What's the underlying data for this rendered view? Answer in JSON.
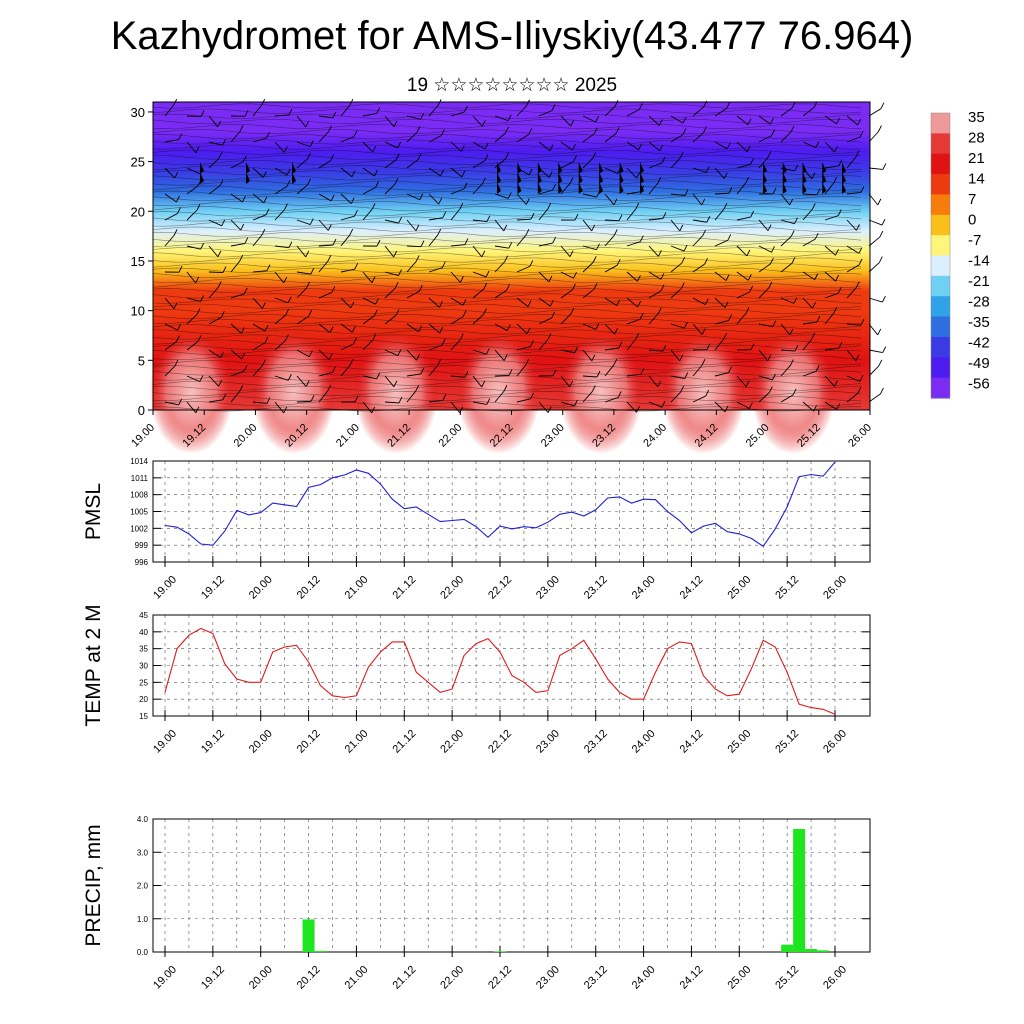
{
  "header": {
    "title": "Kazhydromet for AMS-Iliyskiy(43.477 76.964)",
    "subtitle": "19 ☆☆☆☆☆☆☆☆ 2025"
  },
  "chart_data": [
    {
      "type": "heatmap",
      "title": "",
      "xlabel": "",
      "ylabel": "",
      "x_tick_labels": [
        "19.00",
        "19.12",
        "20.00",
        "20.12",
        "21.00",
        "21.12",
        "22.00",
        "22.12",
        "23.00",
        "23.12",
        "24.00",
        "24.12",
        "25.00",
        "25.12",
        "26.00"
      ],
      "y_tick_labels": [
        "0",
        "5",
        "10",
        "15",
        "20",
        "25",
        "30"
      ],
      "ylim": [
        0,
        31
      ],
      "colorbar_labels": [
        "35",
        "28",
        "21",
        "14",
        "7",
        "0",
        "-7",
        "-14",
        "-21",
        "-28",
        "-35",
        "-42",
        "-49",
        "-56"
      ],
      "colorbar_colors": [
        "#ef9a9a",
        "#e53935",
        "#e01212",
        "#ee3a10",
        "#f67d0c",
        "#fbbf1c",
        "#fff57a",
        "#dcefff",
        "#6fd0f4",
        "#2fa2e8",
        "#2f6ee0",
        "#3b3be5",
        "#4d1cf0",
        "#7a2cf4"
      ],
      "temperature_profile": [
        {
          "height": 0,
          "value": 30
        },
        {
          "height": 5,
          "value": 22
        },
        {
          "height": 10,
          "value": 17
        },
        {
          "height": 12,
          "value": 13
        },
        {
          "height": 14,
          "value": 3
        },
        {
          "height": 16,
          "value": -6
        },
        {
          "height": 18,
          "value": -14
        },
        {
          "height": 20,
          "value": -24
        },
        {
          "height": 22,
          "value": -33
        },
        {
          "height": 24,
          "value": -42
        },
        {
          "height": 26,
          "value": -50
        },
        {
          "height": 28,
          "value": -55
        },
        {
          "height": 31,
          "value": -58
        }
      ],
      "annotations": "wind barbs"
    },
    {
      "type": "line",
      "ylabel": "PMSL",
      "ylim": [
        996,
        1014
      ],
      "y_tick_labels": [
        "996",
        "999",
        "1002",
        "1005",
        "1008",
        "1011",
        "1014"
      ],
      "x_tick_labels": [
        "19.00",
        "19.12",
        "20.00",
        "20.12",
        "21.00",
        "21.12",
        "22.00",
        "22.12",
        "23.00",
        "23.12",
        "24.00",
        "24.12",
        "25.00",
        "25.12",
        "26.00"
      ],
      "color": "#1f1fd6",
      "x": [
        0,
        3,
        6,
        9,
        12,
        15,
        18,
        21,
        24,
        27,
        30,
        33,
        36,
        39,
        42,
        45,
        48,
        51,
        54,
        57,
        60,
        63,
        66,
        69,
        72,
        75,
        78,
        81,
        84,
        87,
        90,
        93,
        96,
        99,
        102,
        105,
        108,
        111,
        114,
        117,
        120,
        123,
        126,
        129,
        132,
        135,
        138,
        141,
        144,
        147,
        150,
        153,
        156,
        159,
        162,
        165,
        168
      ],
      "values": [
        1002.5,
        1002.2,
        1001,
        999.2,
        999,
        1001.5,
        1005.2,
        1004.4,
        1004.8,
        1006.5,
        1006.2,
        1005.9,
        1009.3,
        1009.8,
        1011,
        1011.5,
        1012.4,
        1011.8,
        1009.9,
        1007.2,
        1005.5,
        1005.8,
        1004.5,
        1003.2,
        1003.4,
        1003.6,
        1002.3,
        1000.4,
        1002.4,
        1001.9,
        1002.3,
        1002.1,
        1003.1,
        1004.5,
        1004.9,
        1004.2,
        1005.3,
        1007.4,
        1007.6,
        1006.5,
        1007.2,
        1007.1,
        1005,
        1003.4,
        1001.2,
        1002.4,
        1002.9,
        1001.4,
        1001,
        1000.2,
        998.8,
        1001.9,
        1005.8,
        1011.2,
        1011.6,
        1011.3,
        1013.8
      ]
    },
    {
      "type": "line",
      "ylabel": "TEMP at 2 M",
      "ylim": [
        15,
        45
      ],
      "y_tick_labels": [
        "15",
        "20",
        "25",
        "30",
        "35",
        "40",
        "45"
      ],
      "x_tick_labels": [
        "19.00",
        "19.12",
        "20.00",
        "20.12",
        "21.00",
        "21.12",
        "22.00",
        "22.12",
        "23.00",
        "23.12",
        "24.00",
        "24.12",
        "25.00",
        "25.12",
        "26.00"
      ],
      "color": "#e01b1b",
      "x": [
        0,
        3,
        6,
        9,
        12,
        15,
        18,
        21,
        24,
        27,
        30,
        33,
        36,
        39,
        42,
        45,
        48,
        51,
        54,
        57,
        60,
        63,
        66,
        69,
        72,
        75,
        78,
        81,
        84,
        87,
        90,
        93,
        96,
        99,
        102,
        105,
        108,
        111,
        114,
        117,
        120,
        123,
        126,
        129,
        132,
        135,
        138,
        141,
        144,
        147,
        150,
        153,
        156,
        159,
        162,
        165,
        168
      ],
      "values": [
        22,
        35,
        39,
        41,
        39.5,
        30.5,
        26,
        25,
        25,
        34,
        35.5,
        36,
        31,
        24,
        21,
        20.5,
        21,
        29.5,
        34,
        37,
        37,
        28,
        25,
        22,
        23,
        33,
        36.5,
        38,
        34,
        27,
        25,
        22,
        22.5,
        33,
        35,
        37.5,
        32,
        26,
        22,
        20,
        20,
        28,
        35,
        37,
        36.5,
        27,
        23,
        21,
        21.5,
        29,
        37.5,
        35.5,
        28,
        18.5,
        17.5,
        17,
        15.5
      ]
    },
    {
      "type": "bar",
      "ylabel": "PRECIP, mm",
      "ylim": [
        0,
        4
      ],
      "y_tick_labels": [
        "0.0",
        "1.0",
        "2.0",
        "3.0",
        "4.0"
      ],
      "x_tick_labels": [
        "19.00",
        "19.12",
        "20.00",
        "20.12",
        "21.00",
        "21.12",
        "22.00",
        "22.12",
        "23.00",
        "23.12",
        "24.00",
        "24.12",
        "25.00",
        "25.12",
        "26.00"
      ],
      "color": "#1ee61e",
      "x": [
        36,
        39,
        84,
        156,
        159,
        162,
        165
      ],
      "values": [
        0.98,
        0.03,
        0.02,
        0.22,
        3.7,
        0.09,
        0.05
      ]
    }
  ]
}
